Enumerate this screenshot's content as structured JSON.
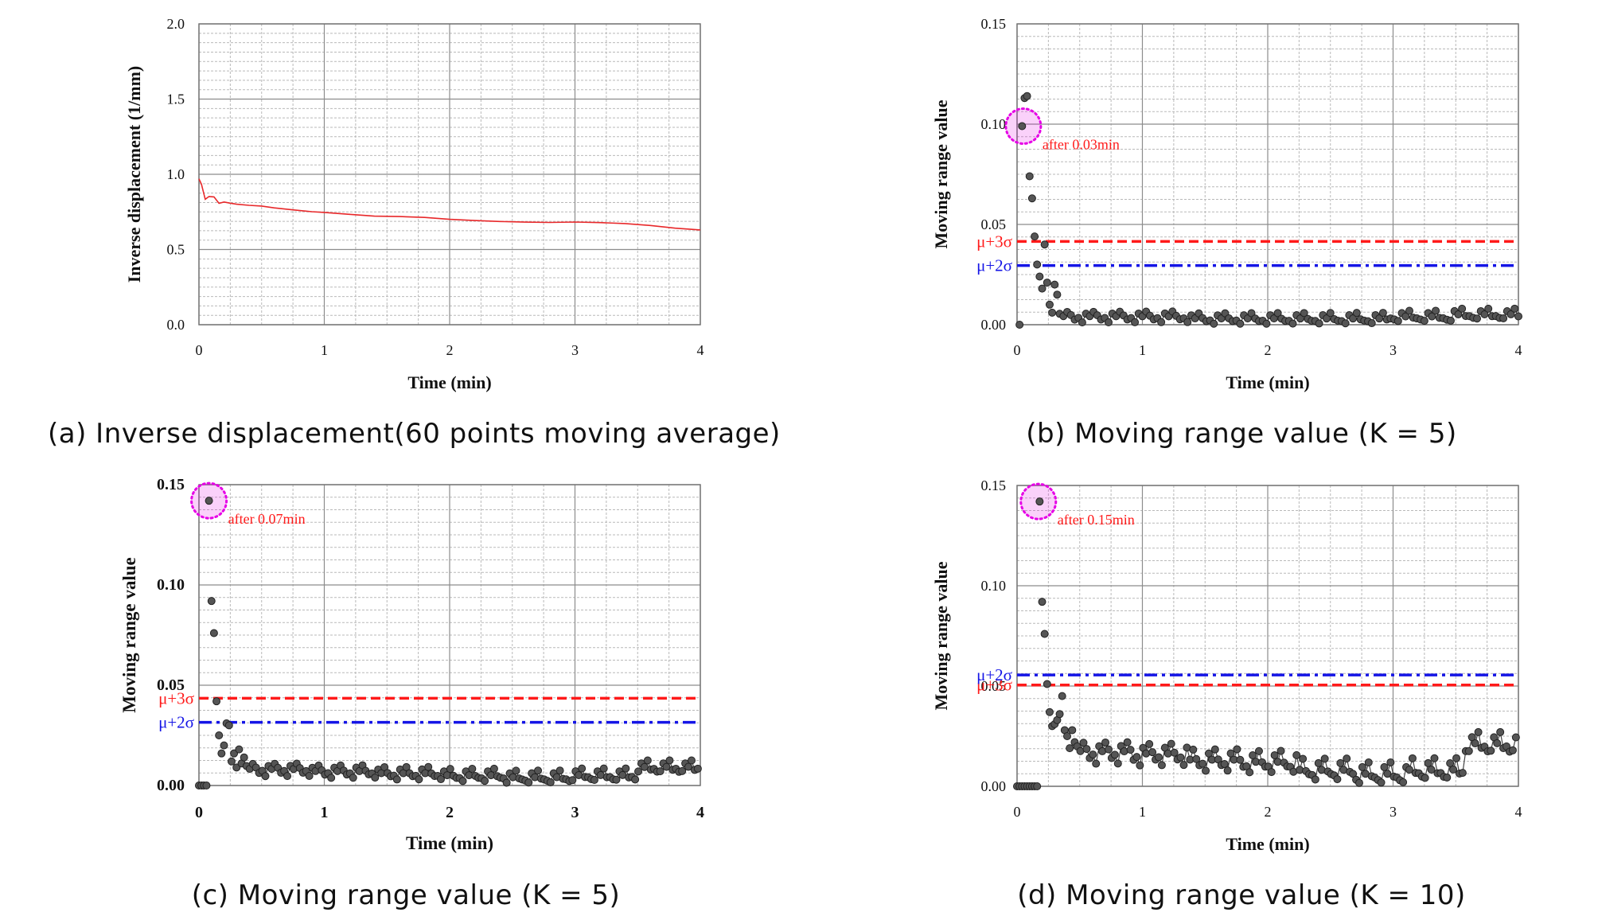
{
  "colors": {
    "line": "#e8282a",
    "ucl3": "#ff1a1a",
    "ucl2": "#1515e6",
    "point": "#555555",
    "highlight": "#e600e6",
    "grid_major": "#8c8c8c",
    "grid_minor": "#b9b9b9"
  },
  "chart_data": [
    {
      "id": "a",
      "type": "line",
      "caption": "(a) Inverse displacement(60 points moving average)",
      "xlabel": "Time (min)",
      "ylabel": "Inverse displacement (1/mm)",
      "xlim": [
        0,
        4
      ],
      "ylim": [
        0,
        2
      ],
      "xticks": [
        "0",
        "1",
        "2",
        "3",
        "4"
      ],
      "yticks": [
        "0.0",
        "0.5",
        "1.0",
        "1.5",
        "2.0"
      ],
      "series": [
        {
          "name": "Inverse displacement",
          "x": [
            0,
            0.02,
            0.05,
            0.08,
            0.12,
            0.16,
            0.2,
            0.25,
            0.3,
            0.4,
            0.5,
            0.6,
            0.75,
            0.9,
            1.0,
            1.2,
            1.4,
            1.6,
            1.8,
            2.0,
            2.2,
            2.4,
            2.6,
            2.8,
            3.0,
            3.2,
            3.4,
            3.6,
            3.8,
            4.0
          ],
          "y": [
            0.97,
            0.93,
            0.83,
            0.85,
            0.85,
            0.81,
            0.82,
            0.81,
            0.8,
            0.79,
            0.785,
            0.775,
            0.765,
            0.755,
            0.75,
            0.735,
            0.72,
            0.715,
            0.71,
            0.7,
            0.695,
            0.69,
            0.685,
            0.68,
            0.68,
            0.675,
            0.67,
            0.66,
            0.645,
            0.63
          ]
        }
      ]
    },
    {
      "id": "b",
      "type": "scatter",
      "caption": "(b) Moving range value (K = 5)",
      "xlabel": "Time (min)",
      "ylabel": "Moving range value",
      "xlim": [
        0,
        4
      ],
      "ylim": [
        0,
        0.15
      ],
      "xticks": [
        "0",
        "1",
        "2",
        "3",
        "4"
      ],
      "yticks": [
        "0.00",
        "0.05",
        "0.10",
        "0.15"
      ],
      "ucl3": {
        "label": "μ+3σ",
        "value": 0.0415
      },
      "ucl2": {
        "label": "μ+2σ",
        "value": 0.0295
      },
      "annotation": {
        "text": "after 0.03min",
        "x": 0.05,
        "y": 0.099
      },
      "points": {
        "x": [
          0.02,
          0.04,
          0.06,
          0.08,
          0.1,
          0.12,
          0.14,
          0.16,
          0.18,
          0.2,
          0.22,
          0.24,
          0.26,
          0.28,
          0.3,
          0.32
        ],
        "y": [
          0.0,
          0.099,
          0.113,
          0.114,
          0.074,
          0.063,
          0.044,
          0.03,
          0.024,
          0.018,
          0.04,
          0.021,
          0.01,
          0.006,
          0.02,
          0.015
        ]
      },
      "noise": {
        "start": 0.34,
        "step": 0.03,
        "base": [
          0.004,
          0.004,
          0.003,
          0.003,
          0.003,
          0.004,
          0.005
        ],
        "amp": 0.003
      }
    },
    {
      "id": "c",
      "type": "scatter",
      "caption": "(c) Moving range value (K = 5)",
      "xlabel": "Time (min)",
      "ylabel": "Moving range value",
      "xlim": [
        0,
        4
      ],
      "ylim": [
        0,
        0.15
      ],
      "xticks": [
        "0",
        "1",
        "2",
        "3",
        "4"
      ],
      "yticks": [
        "0.00",
        "0.05",
        "0.10",
        "0.15"
      ],
      "ucl3": {
        "label": "μ+3σ",
        "value": 0.0435
      },
      "ucl2": {
        "label": "μ+2σ",
        "value": 0.0315
      },
      "annotation": {
        "text": "after 0.07min",
        "x": 0.08,
        "y": 0.142
      },
      "points": {
        "x": [
          0.0,
          0.02,
          0.04,
          0.06,
          0.08,
          0.1,
          0.12,
          0.14,
          0.16,
          0.18,
          0.2,
          0.22,
          0.24,
          0.26,
          0.28,
          0.3,
          0.32,
          0.34,
          0.36
        ],
        "y": [
          0.0,
          0.0,
          0.0,
          0.0,
          0.142,
          0.092,
          0.076,
          0.042,
          0.025,
          0.016,
          0.02,
          0.031,
          0.03,
          0.012,
          0.016,
          0.009,
          0.018,
          0.011,
          0.014
        ]
      },
      "noise": {
        "start": 0.38,
        "step": 0.025,
        "base": [
          0.008,
          0.007,
          0.006,
          0.005,
          0.004,
          0.005,
          0.009
        ],
        "amp": 0.0035
      }
    },
    {
      "id": "d",
      "type": "scatter",
      "caption": "(d) Moving range value (K = 10)",
      "xlabel": "Time (min)",
      "ylabel": "Moving range value",
      "xlim": [
        0,
        4
      ],
      "ylim": [
        0,
        0.15
      ],
      "xticks": [
        "0",
        "1",
        "2",
        "3",
        "4"
      ],
      "yticks": [
        "0.00",
        "0.05",
        "0.10",
        "0.15"
      ],
      "ucl3": {
        "label": "μ+3σ",
        "value": 0.0505
      },
      "ucl2": {
        "label": "μ+2σ",
        "value": 0.0555
      },
      "annotation": {
        "text": "after 0.15min",
        "x": 0.17,
        "y": 0.142
      },
      "points": {
        "x": [
          0.0,
          0.02,
          0.04,
          0.06,
          0.08,
          0.1,
          0.12,
          0.14,
          0.16,
          0.18,
          0.2,
          0.22,
          0.24,
          0.26,
          0.28,
          0.3,
          0.32,
          0.34,
          0.36,
          0.38,
          0.4,
          0.42,
          0.44,
          0.46
        ],
        "y": [
          0.0,
          0.0,
          0.0,
          0.0,
          0.0,
          0.0,
          0.0,
          0.0,
          0.0,
          0.142,
          0.092,
          0.076,
          0.051,
          0.037,
          0.03,
          0.031,
          0.033,
          0.036,
          0.045,
          0.028,
          0.025,
          0.019,
          0.028,
          0.022
        ]
      },
      "noise": {
        "start": 0.48,
        "step": 0.025,
        "base": [
          0.017,
          0.016,
          0.013,
          0.012,
          0.008,
          0.006,
          0.008,
          0.021
        ],
        "amp": 0.006
      }
    }
  ]
}
